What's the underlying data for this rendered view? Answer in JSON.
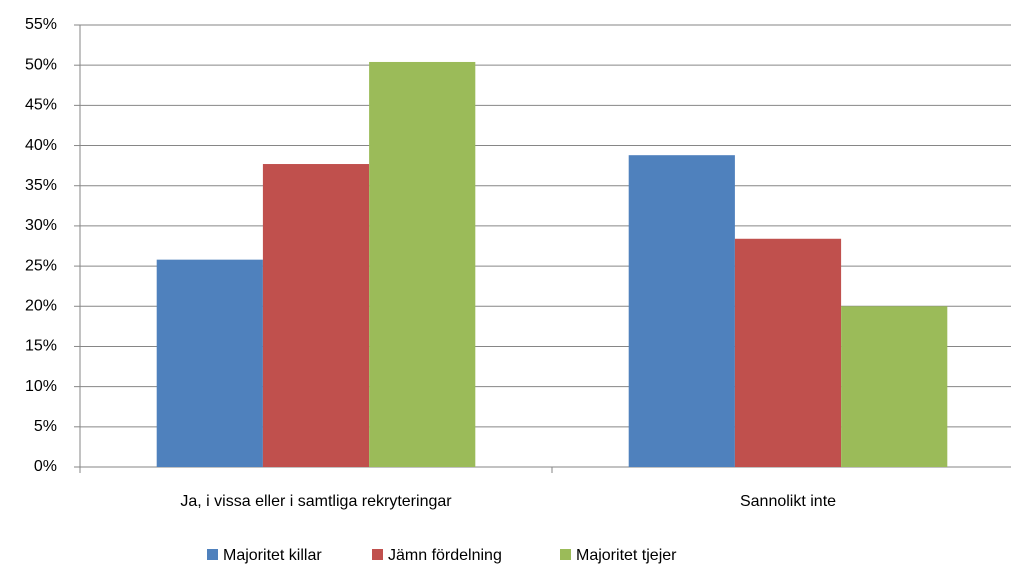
{
  "chart_data": {
    "type": "bar",
    "categories": [
      "Ja, i vissa eller i samtliga rekryteringar",
      "Sannolikt inte"
    ],
    "series": [
      {
        "name": "Majoritet killar",
        "color": "#4f81bd",
        "values": [
          25.8,
          38.8
        ]
      },
      {
        "name": "Jämn fördelning",
        "color": "#c0504d",
        "values": [
          37.7,
          28.4
        ]
      },
      {
        "name": "Majoritet tjejer",
        "color": "#9bbb59",
        "values": [
          50.4,
          20.0
        ]
      }
    ],
    "ylim": [
      0,
      55
    ],
    "yticks": [
      {
        "value": 0,
        "label": "0%"
      },
      {
        "value": 5,
        "label": "5%"
      },
      {
        "value": 10,
        "label": "10%"
      },
      {
        "value": 15,
        "label": "15%"
      },
      {
        "value": 20,
        "label": "20%"
      },
      {
        "value": 25,
        "label": "25%"
      },
      {
        "value": 30,
        "label": "30%"
      },
      {
        "value": 35,
        "label": "35%"
      },
      {
        "value": 40,
        "label": "40%"
      },
      {
        "value": 45,
        "label": "45%"
      },
      {
        "value": 50,
        "label": "50%"
      },
      {
        "value": 55,
        "label": "55%"
      }
    ],
    "grid": true,
    "legend": "bottom"
  }
}
